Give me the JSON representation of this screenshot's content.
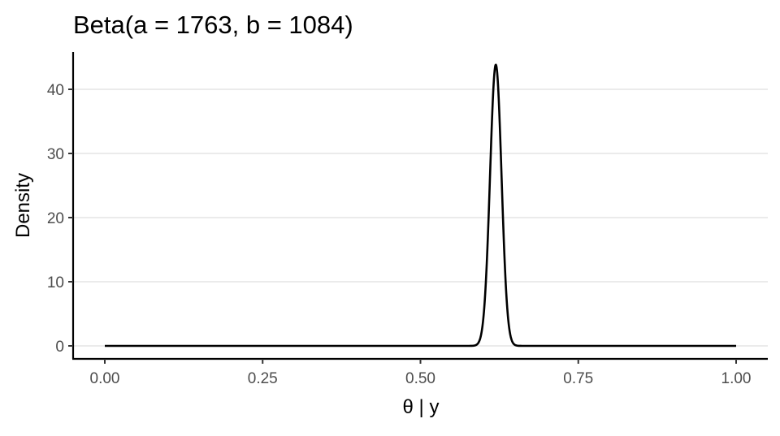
{
  "chart_data": {
    "type": "line",
    "title": "Beta(a = 1763, b = 1084)",
    "xlabel": "θ | y",
    "ylabel": "Density",
    "distribution": {
      "family": "beta",
      "a": 1763,
      "b": 1084
    },
    "xlim": [
      0,
      1
    ],
    "ylim": [
      0,
      44
    ],
    "x_ticks": [
      0,
      0.25,
      0.5,
      0.75,
      1
    ],
    "x_tick_labels": [
      "0.00",
      "0.25",
      "0.50",
      "0.75",
      "1.00"
    ],
    "y_ticks": [
      0,
      10,
      20,
      30,
      40
    ],
    "y_tick_labels": [
      "0",
      "10",
      "20",
      "30",
      "40"
    ],
    "grid": "horizontal major",
    "legend": "none",
    "series": [
      {
        "color": "#000000",
        "x": [
          0.0,
          0.56,
          0.58,
          0.59,
          0.6,
          0.605,
          0.61,
          0.615,
          0.6195,
          0.625,
          0.63,
          0.635,
          0.64,
          0.65,
          0.66,
          0.68,
          1.0
        ],
        "values": [
          0.0,
          0.0,
          0.1,
          1.6,
          9.0,
          17.1,
          27.3,
          36.6,
          43.8,
          38.6,
          29.4,
          19.0,
          10.4,
          1.8,
          0.1,
          0.0,
          0.0
        ]
      }
    ]
  }
}
